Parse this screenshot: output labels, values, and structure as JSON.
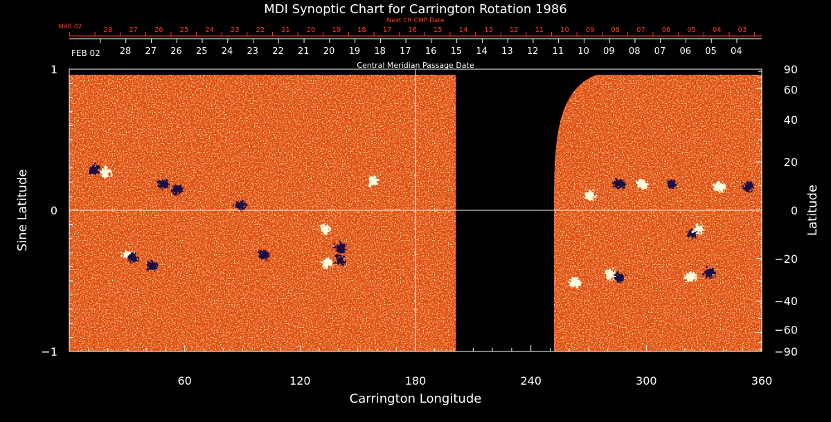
{
  "chart_data": {
    "type": "heatmap",
    "title": "MDI Synoptic Chart for Carrington Rotation 1986",
    "xlabel": "Carrington Longitude",
    "ylabel_left": "Sine Latitude",
    "ylabel_right": "Latitude",
    "xlim": [
      0,
      360
    ],
    "ylim": [
      -1,
      1
    ],
    "x_ticks": [
      60,
      120,
      180,
      240,
      300,
      360
    ],
    "x_minor_step": 10,
    "left_y_ticks": [
      {
        "value": 1,
        "label": "1"
      },
      {
        "value": 0,
        "label": "0"
      },
      {
        "value": -1,
        "label": "−1"
      }
    ],
    "left_minor_step": 0.1,
    "right_y_ticks": [
      {
        "deg": 90,
        "label": "90"
      },
      {
        "deg": 60,
        "label": "60"
      },
      {
        "deg": 40,
        "label": "40"
      },
      {
        "deg": 20,
        "label": "20"
      },
      {
        "deg": 0,
        "label": "0"
      },
      {
        "deg": -20,
        "label": "−20"
      },
      {
        "deg": -40,
        "label": "−40"
      },
      {
        "deg": -60,
        "label": "−60"
      },
      {
        "deg": -90,
        "label": "−90"
      }
    ],
    "right_minor_deg": [
      80,
      70,
      50,
      30,
      10,
      -10,
      -30,
      -50,
      -70,
      -80
    ],
    "cmp_axis": {
      "label": "Central Meridian Passage Date",
      "first_label": "FEB 02",
      "days": [
        "28",
        "27",
        "26",
        "25",
        "24",
        "23",
        "22",
        "21",
        "20",
        "19",
        "18",
        "17",
        "16",
        "15",
        "14",
        "13",
        "12",
        "11",
        "10",
        "09",
        "08",
        "07",
        "06",
        "05",
        "04"
      ]
    },
    "next_cmp_axis": {
      "label": "Next CR CMP Date",
      "first_label": "MAR 02",
      "days": [
        "28",
        "27",
        "26",
        "25",
        "24",
        "23",
        "22",
        "21",
        "20",
        "19",
        "18",
        "17",
        "16",
        "15",
        "14",
        "13",
        "12",
        "11",
        "10",
        "09",
        "08",
        "07",
        "06",
        "05",
        "04",
        "03"
      ]
    },
    "gridlines": {
      "longitude": 180,
      "sine_latitude": 0
    },
    "data_gap_longitude": [
      201,
      252
    ],
    "active_regions": [
      {
        "lon": 12,
        "sinlat": 0.3,
        "polarity": "negative"
      },
      {
        "lon": 18,
        "sinlat": 0.28,
        "polarity": "positive"
      },
      {
        "lon": 48,
        "sinlat": 0.2,
        "polarity": "negative"
      },
      {
        "lon": 55,
        "sinlat": 0.16,
        "polarity": "negative"
      },
      {
        "lon": 88,
        "sinlat": 0.05,
        "polarity": "negative"
      },
      {
        "lon": 132,
        "sinlat": -0.12,
        "polarity": "positive"
      },
      {
        "lon": 140,
        "sinlat": -0.25,
        "polarity": "negative"
      },
      {
        "lon": 157,
        "sinlat": 0.22,
        "polarity": "positive"
      },
      {
        "lon": 30,
        "sinlat": -0.3,
        "polarity": "positive"
      },
      {
        "lon": 32,
        "sinlat": -0.32,
        "polarity": "negative"
      },
      {
        "lon": 42,
        "sinlat": -0.38,
        "polarity": "negative"
      },
      {
        "lon": 100,
        "sinlat": -0.3,
        "polarity": "negative"
      },
      {
        "lon": 133,
        "sinlat": -0.36,
        "polarity": "positive"
      },
      {
        "lon": 140,
        "sinlat": -0.34,
        "polarity": "negative"
      },
      {
        "lon": 270,
        "sinlat": 0.12,
        "polarity": "positive"
      },
      {
        "lon": 285,
        "sinlat": 0.2,
        "polarity": "negative"
      },
      {
        "lon": 297,
        "sinlat": 0.2,
        "polarity": "positive"
      },
      {
        "lon": 312,
        "sinlat": 0.2,
        "polarity": "negative"
      },
      {
        "lon": 323,
        "sinlat": -0.15,
        "polarity": "negative"
      },
      {
        "lon": 326,
        "sinlat": -0.12,
        "polarity": "positive"
      },
      {
        "lon": 337,
        "sinlat": 0.18,
        "polarity": "positive"
      },
      {
        "lon": 352,
        "sinlat": 0.18,
        "polarity": "negative"
      },
      {
        "lon": 262,
        "sinlat": -0.5,
        "polarity": "positive"
      },
      {
        "lon": 280,
        "sinlat": -0.44,
        "polarity": "positive"
      },
      {
        "lon": 285,
        "sinlat": -0.46,
        "polarity": "negative"
      },
      {
        "lon": 322,
        "sinlat": -0.46,
        "polarity": "positive"
      },
      {
        "lon": 332,
        "sinlat": -0.43,
        "polarity": "negative"
      }
    ],
    "colors": {
      "background": "#000000",
      "axes": "#ffffff",
      "date_axis_red": "#ff3b1f",
      "field_base": "#e24a0e",
      "negative": "#1a0a44",
      "positive": "#ffffe0"
    }
  }
}
